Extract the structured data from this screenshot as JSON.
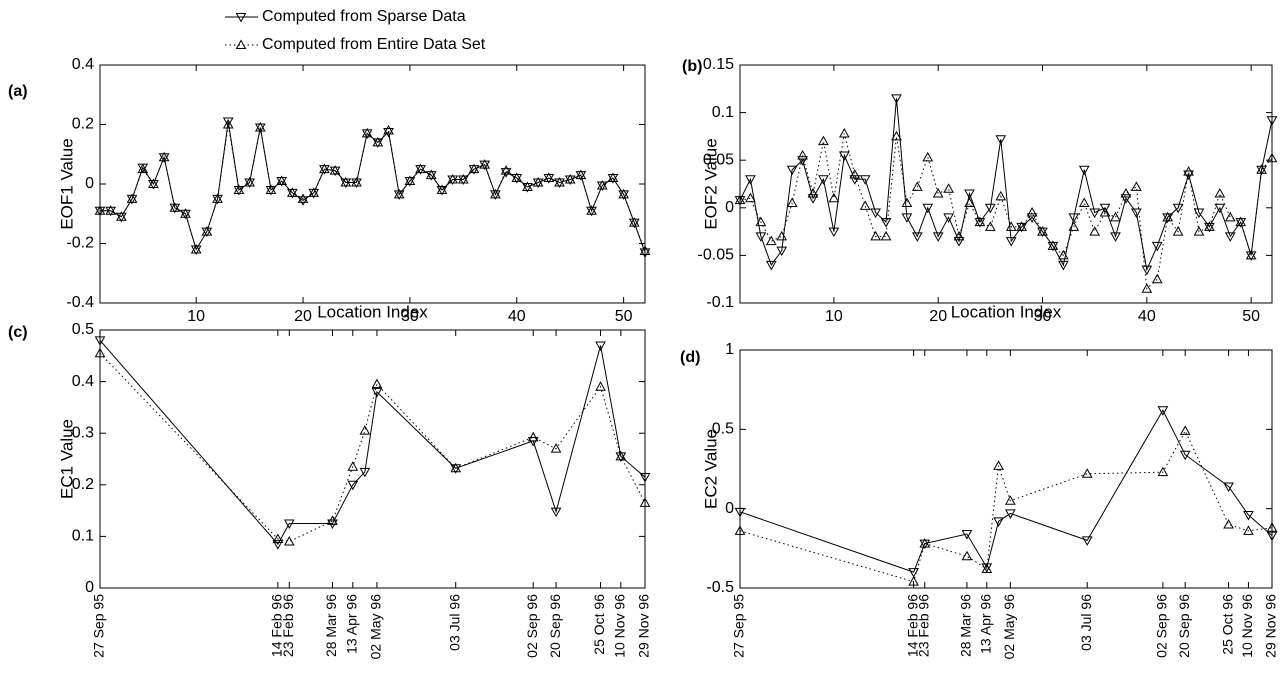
{
  "chart_data": [
    {
      "type": "line",
      "panel_label": "(a)",
      "ylabel": "EOF1 Value",
      "xlabel": "Location Index",
      "x": [
        1,
        2,
        3,
        4,
        5,
        6,
        7,
        8,
        9,
        10,
        11,
        12,
        13,
        14,
        15,
        16,
        17,
        18,
        19,
        20,
        21,
        22,
        23,
        24,
        25,
        26,
        27,
        28,
        29,
        30,
        31,
        32,
        33,
        34,
        35,
        36,
        37,
        38,
        39,
        40,
        41,
        42,
        43,
        44,
        45,
        46,
        47,
        48,
        49,
        50,
        51,
        52
      ],
      "xlim": [
        1,
        52
      ],
      "xticks": [
        10,
        20,
        30,
        40,
        50
      ],
      "ylim": [
        -0.4,
        0.4
      ],
      "yticks": [
        -0.4,
        -0.2,
        0,
        0.2,
        0.4
      ],
      "series": [
        {
          "name": "Computed from Sparse Data",
          "color": "#000000",
          "marker": "triangle-down",
          "linestyle": "solid",
          "values": [
            -0.09,
            -0.09,
            -0.11,
            -0.05,
            0.055,
            0.0,
            0.09,
            -0.08,
            -0.1,
            -0.22,
            -0.16,
            -0.05,
            0.21,
            -0.02,
            0.005,
            0.19,
            -0.02,
            0.01,
            -0.03,
            -0.055,
            -0.03,
            0.05,
            0.045,
            0.005,
            0.005,
            0.17,
            0.14,
            0.175,
            -0.035,
            0.01,
            0.05,
            0.03,
            -0.02,
            0.015,
            0.015,
            0.05,
            0.065,
            -0.035,
            0.04,
            0.02,
            -0.01,
            0.005,
            0.02,
            0.005,
            0.015,
            0.03,
            -0.09,
            -0.005,
            0.02,
            -0.035,
            -0.13,
            -0.23
          ]
        },
        {
          "name": "Computed from Entire Data Set",
          "color": "#000000",
          "marker": "triangle-up",
          "linestyle": "dotted",
          "values": [
            -0.09,
            -0.09,
            -0.11,
            -0.05,
            0.05,
            0.0,
            0.09,
            -0.08,
            -0.1,
            -0.22,
            -0.16,
            -0.05,
            0.2,
            -0.02,
            0.005,
            0.19,
            -0.02,
            0.01,
            -0.03,
            -0.05,
            -0.03,
            0.05,
            0.045,
            0.005,
            0.005,
            0.17,
            0.14,
            0.18,
            -0.035,
            0.01,
            0.05,
            0.03,
            -0.02,
            0.015,
            0.015,
            0.05,
            0.065,
            -0.035,
            0.045,
            0.02,
            -0.01,
            0.005,
            0.02,
            0.005,
            0.015,
            0.03,
            -0.09,
            -0.005,
            0.02,
            -0.035,
            -0.13,
            -0.225
          ]
        }
      ]
    },
    {
      "type": "line",
      "panel_label": "(b)",
      "ylabel": "EOF2 Value",
      "xlabel": "Location Index",
      "x": [
        1,
        2,
        3,
        4,
        5,
        6,
        7,
        8,
        9,
        10,
        11,
        12,
        13,
        14,
        15,
        16,
        17,
        18,
        19,
        20,
        21,
        22,
        23,
        24,
        25,
        26,
        27,
        28,
        29,
        30,
        31,
        32,
        33,
        34,
        35,
        36,
        37,
        38,
        39,
        40,
        41,
        42,
        43,
        44,
        45,
        46,
        47,
        48,
        49,
        50,
        51,
        52
      ],
      "xlim": [
        1,
        52
      ],
      "xticks": [
        10,
        20,
        30,
        40,
        50
      ],
      "ylim": [
        -0.1,
        0.15
      ],
      "yticks": [
        -0.1,
        -0.05,
        0,
        0.05,
        0.1,
        0.15
      ],
      "series": [
        {
          "color": "#000000",
          "marker": "triangle-down",
          "linestyle": "solid",
          "values": [
            0.008,
            0.03,
            -0.03,
            -0.06,
            -0.045,
            0.04,
            0.05,
            0.01,
            0.03,
            -0.025,
            0.055,
            0.03,
            0.03,
            -0.005,
            -0.015,
            0.115,
            -0.01,
            -0.03,
            0.0,
            -0.03,
            -0.01,
            -0.035,
            0.015,
            -0.015,
            0.0,
            0.072,
            -0.035,
            -0.02,
            -0.01,
            -0.025,
            -0.04,
            -0.06,
            -0.01,
            0.04,
            -0.005,
            0.0,
            -0.03,
            0.01,
            -0.005,
            -0.065,
            -0.04,
            -0.01,
            0.0,
            0.035,
            -0.005,
            -0.02,
            0.0,
            -0.03,
            -0.015,
            -0.05,
            0.04,
            0.092
          ]
        },
        {
          "color": "#000000",
          "marker": "triangle-up",
          "linestyle": "dotted",
          "values": [
            0.008,
            0.01,
            -0.015,
            -0.035,
            -0.03,
            0.005,
            0.055,
            0.015,
            0.07,
            0.01,
            0.078,
            0.035,
            0.002,
            -0.03,
            -0.03,
            0.075,
            0.005,
            0.022,
            0.053,
            0.015,
            0.02,
            -0.03,
            0.005,
            -0.015,
            -0.02,
            0.012,
            -0.02,
            -0.02,
            -0.005,
            -0.025,
            -0.04,
            -0.05,
            -0.02,
            0.005,
            -0.025,
            -0.005,
            -0.01,
            0.015,
            0.022,
            -0.085,
            -0.075,
            -0.01,
            -0.025,
            0.038,
            -0.025,
            -0.02,
            0.015,
            -0.01,
            -0.015,
            -0.05,
            0.04,
            0.052
          ]
        }
      ]
    },
    {
      "type": "line",
      "panel_label": "(c)",
      "ylabel": "EC1 Value",
      "x": [
        "27 Sep 95",
        "14 Feb 96",
        "23 Feb 96",
        "28 Mar 96",
        "13 Apr 96",
        null,
        "02 May 96",
        "03 Jul 96",
        "02 Sep 96",
        "20 Sep 96",
        "25 Oct 96",
        "10 Nov 96",
        "29 Nov 96"
      ],
      "ylim": [
        0,
        0.5
      ],
      "yticks": [
        0,
        0.1,
        0.2,
        0.3,
        0.4,
        0.5
      ],
      "series": [
        {
          "color": "#000000",
          "marker": "triangle-down",
          "linestyle": "solid",
          "values": [
            0.48,
            0.085,
            0.125,
            0.125,
            0.2,
            0.225,
            0.38,
            0.232,
            0.285,
            0.148,
            0.47,
            0.255,
            0.215
          ]
        },
        {
          "color": "#000000",
          "marker": "triangle-up",
          "linestyle": "dotted",
          "values": [
            0.455,
            0.095,
            0.09,
            0.13,
            0.235,
            0.305,
            0.395,
            0.232,
            0.292,
            0.27,
            0.39,
            0.255,
            0.165
          ]
        }
      ]
    },
    {
      "type": "line",
      "panel_label": "(d)",
      "ylabel": "EC2 Value",
      "x": [
        "27 Sep 95",
        "14 Feb 96",
        "23 Feb 96",
        "28 Mar 96",
        "13 Apr 96",
        null,
        "02 May 96",
        "03 Jul 96",
        "02 Sep 96",
        "20 Sep 96",
        "25 Oct 96",
        "10 Nov 96",
        "29 Nov 96"
      ],
      "ylim": [
        -0.5,
        1
      ],
      "yticks": [
        -0.5,
        0,
        0.5,
        1
      ],
      "series": [
        {
          "color": "#000000",
          "marker": "triangle-down",
          "linestyle": "solid",
          "values": [
            -0.02,
            -0.4,
            -0.22,
            -0.16,
            -0.37,
            -0.08,
            -0.03,
            -0.2,
            0.62,
            0.34,
            0.14,
            -0.04,
            -0.17
          ]
        },
        {
          "color": "#000000",
          "marker": "triangle-up",
          "linestyle": "dotted",
          "values": [
            -0.14,
            -0.46,
            -0.22,
            -0.3,
            -0.38,
            0.27,
            0.05,
            0.22,
            0.23,
            0.49,
            -0.1,
            -0.14,
            -0.12
          ]
        }
      ]
    }
  ]
}
